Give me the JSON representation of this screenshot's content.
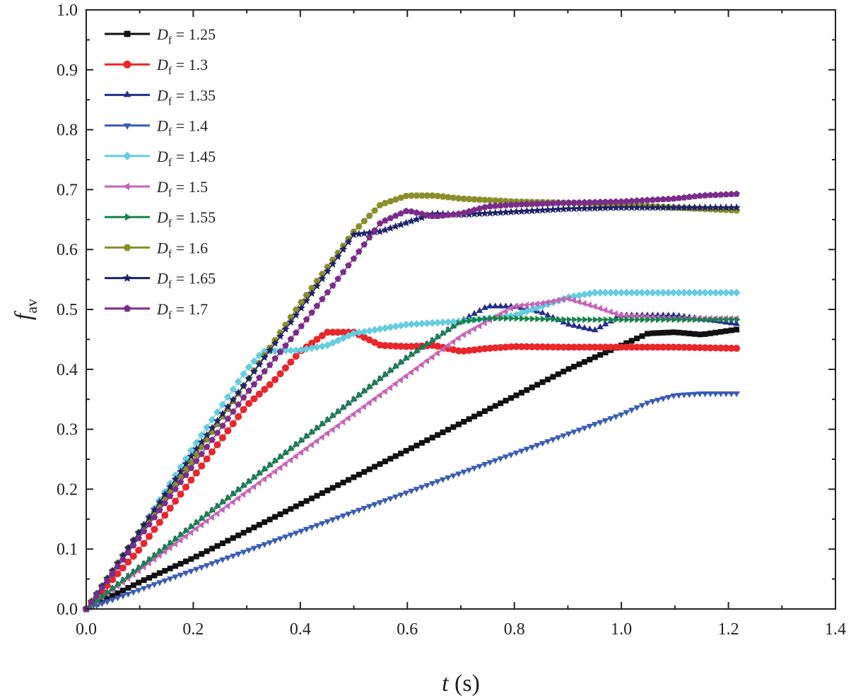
{
  "chart_data": {
    "type": "line",
    "xlabel_var": "t",
    "xlabel_unit": " (s)",
    "ylabel_main": "f",
    "ylabel_sub": "av",
    "xlim": [
      0.0,
      1.4
    ],
    "ylim": [
      0.0,
      1.0
    ],
    "xticks": [
      "0.0",
      "0.2",
      "0.4",
      "0.6",
      "0.8",
      "1.0",
      "1.2",
      "1.4"
    ],
    "yticks": [
      "0.0",
      "0.1",
      "0.2",
      "0.3",
      "0.4",
      "0.5",
      "0.6",
      "0.7",
      "0.8",
      "0.9",
      "1.0"
    ],
    "legend_position": "top-left",
    "series": [
      {
        "label_main": "D",
        "label_sub": "f",
        "label_value": " = 1.25",
        "color": "#111111",
        "marker": "square",
        "points": [
          [
            0,
            0
          ],
          [
            0.1,
            0.045
          ],
          [
            0.2,
            0.085
          ],
          [
            0.3,
            0.13
          ],
          [
            0.4,
            0.175
          ],
          [
            0.5,
            0.22
          ],
          [
            0.6,
            0.265
          ],
          [
            0.7,
            0.31
          ],
          [
            0.8,
            0.355
          ],
          [
            0.9,
            0.4
          ],
          [
            1.0,
            0.44
          ],
          [
            1.05,
            0.46
          ],
          [
            1.1,
            0.462
          ],
          [
            1.15,
            0.458
          ],
          [
            1.22,
            0.467
          ]
        ]
      },
      {
        "label_main": "D",
        "label_sub": "f",
        "label_value": " = 1.3",
        "color": "#e8262b",
        "marker": "circle",
        "points": [
          [
            0,
            0
          ],
          [
            0.1,
            0.1
          ],
          [
            0.2,
            0.22
          ],
          [
            0.3,
            0.34
          ],
          [
            0.35,
            0.38
          ],
          [
            0.4,
            0.43
          ],
          [
            0.45,
            0.462
          ],
          [
            0.5,
            0.462
          ],
          [
            0.55,
            0.44
          ],
          [
            0.6,
            0.438
          ],
          [
            0.65,
            0.44
          ],
          [
            0.7,
            0.43
          ],
          [
            0.75,
            0.435
          ],
          [
            0.8,
            0.438
          ],
          [
            0.9,
            0.437
          ],
          [
            1.0,
            0.437
          ],
          [
            1.1,
            0.437
          ],
          [
            1.22,
            0.435
          ]
        ]
      },
      {
        "label_main": "D",
        "label_sub": "f",
        "label_value": " = 1.35",
        "color": "#242d8c",
        "marker": "triangle-up",
        "points": [
          [
            0,
            0
          ],
          [
            0.1,
            0.07
          ],
          [
            0.2,
            0.14
          ],
          [
            0.3,
            0.21
          ],
          [
            0.4,
            0.28
          ],
          [
            0.5,
            0.35
          ],
          [
            0.6,
            0.42
          ],
          [
            0.7,
            0.48
          ],
          [
            0.75,
            0.505
          ],
          [
            0.8,
            0.505
          ],
          [
            0.85,
            0.495
          ],
          [
            0.9,
            0.475
          ],
          [
            0.95,
            0.465
          ],
          [
            1.0,
            0.49
          ],
          [
            1.1,
            0.49
          ],
          [
            1.22,
            0.475
          ]
        ]
      },
      {
        "label_main": "D",
        "label_sub": "f",
        "label_value": " = 1.4",
        "color": "#3b5cb5",
        "marker": "triangle-down",
        "points": [
          [
            0,
            0
          ],
          [
            0.2,
            0.065
          ],
          [
            0.4,
            0.13
          ],
          [
            0.6,
            0.195
          ],
          [
            0.8,
            0.26
          ],
          [
            1.0,
            0.325
          ],
          [
            1.05,
            0.345
          ],
          [
            1.1,
            0.357
          ],
          [
            1.15,
            0.36
          ],
          [
            1.22,
            0.36
          ]
        ]
      },
      {
        "label_main": "D",
        "label_sub": "f",
        "label_value": " = 1.45",
        "color": "#64cde0",
        "marker": "diamond",
        "points": [
          [
            0,
            0
          ],
          [
            0.1,
            0.13
          ],
          [
            0.2,
            0.27
          ],
          [
            0.3,
            0.4
          ],
          [
            0.33,
            0.43
          ],
          [
            0.4,
            0.432
          ],
          [
            0.45,
            0.44
          ],
          [
            0.5,
            0.46
          ],
          [
            0.6,
            0.475
          ],
          [
            0.7,
            0.48
          ],
          [
            0.8,
            0.49
          ],
          [
            0.9,
            0.52
          ],
          [
            0.95,
            0.528
          ],
          [
            1.0,
            0.528
          ],
          [
            1.22,
            0.528
          ]
        ]
      },
      {
        "label_main": "D",
        "label_sub": "f",
        "label_value": " = 1.5",
        "color": "#c565b5",
        "marker": "triangle-left",
        "points": [
          [
            0,
            0
          ],
          [
            0.1,
            0.065
          ],
          [
            0.2,
            0.13
          ],
          [
            0.3,
            0.195
          ],
          [
            0.4,
            0.26
          ],
          [
            0.5,
            0.325
          ],
          [
            0.6,
            0.39
          ],
          [
            0.7,
            0.455
          ],
          [
            0.8,
            0.505
          ],
          [
            0.85,
            0.51
          ],
          [
            0.9,
            0.518
          ],
          [
            0.95,
            0.505
          ],
          [
            1.0,
            0.49
          ],
          [
            1.1,
            0.485
          ],
          [
            1.22,
            0.485
          ]
        ]
      },
      {
        "label_main": "D",
        "label_sub": "f",
        "label_value": " = 1.55",
        "color": "#18834a",
        "marker": "triangle-right",
        "points": [
          [
            0,
            0
          ],
          [
            0.1,
            0.07
          ],
          [
            0.2,
            0.14
          ],
          [
            0.3,
            0.21
          ],
          [
            0.4,
            0.28
          ],
          [
            0.5,
            0.35
          ],
          [
            0.6,
            0.42
          ],
          [
            0.7,
            0.48
          ],
          [
            0.75,
            0.485
          ],
          [
            0.8,
            0.485
          ],
          [
            0.9,
            0.483
          ],
          [
            1.0,
            0.483
          ],
          [
            1.22,
            0.483
          ]
        ]
      },
      {
        "label_main": "D",
        "label_sub": "f",
        "label_value": " = 1.6",
        "color": "#8a8e2a",
        "marker": "hexagon",
        "points": [
          [
            0,
            0
          ],
          [
            0.1,
            0.13
          ],
          [
            0.2,
            0.25
          ],
          [
            0.3,
            0.38
          ],
          [
            0.4,
            0.51
          ],
          [
            0.5,
            0.63
          ],
          [
            0.55,
            0.675
          ],
          [
            0.6,
            0.69
          ],
          [
            0.65,
            0.69
          ],
          [
            0.7,
            0.685
          ],
          [
            0.8,
            0.68
          ],
          [
            0.9,
            0.678
          ],
          [
            1.0,
            0.675
          ],
          [
            1.1,
            0.67
          ],
          [
            1.22,
            0.665
          ]
        ]
      },
      {
        "label_main": "D",
        "label_sub": "f",
        "label_value": " = 1.65",
        "color": "#1e2266",
        "marker": "star",
        "points": [
          [
            0,
            0
          ],
          [
            0.1,
            0.13
          ],
          [
            0.2,
            0.26
          ],
          [
            0.3,
            0.38
          ],
          [
            0.4,
            0.5
          ],
          [
            0.5,
            0.625
          ],
          [
            0.55,
            0.63
          ],
          [
            0.6,
            0.645
          ],
          [
            0.65,
            0.66
          ],
          [
            0.7,
            0.658
          ],
          [
            0.8,
            0.663
          ],
          [
            0.9,
            0.668
          ],
          [
            1.0,
            0.67
          ],
          [
            1.1,
            0.67
          ],
          [
            1.22,
            0.67
          ]
        ]
      },
      {
        "label_main": "D",
        "label_sub": "f",
        "label_value": " = 1.7",
        "color": "#7a2c8a",
        "marker": "pentagon",
        "points": [
          [
            0,
            0
          ],
          [
            0.1,
            0.12
          ],
          [
            0.2,
            0.24
          ],
          [
            0.3,
            0.36
          ],
          [
            0.4,
            0.47
          ],
          [
            0.5,
            0.585
          ],
          [
            0.55,
            0.645
          ],
          [
            0.6,
            0.665
          ],
          [
            0.65,
            0.655
          ],
          [
            0.7,
            0.66
          ],
          [
            0.75,
            0.672
          ],
          [
            0.8,
            0.675
          ],
          [
            0.9,
            0.678
          ],
          [
            1.0,
            0.68
          ],
          [
            1.1,
            0.685
          ],
          [
            1.15,
            0.69
          ],
          [
            1.22,
            0.693
          ]
        ]
      }
    ]
  }
}
